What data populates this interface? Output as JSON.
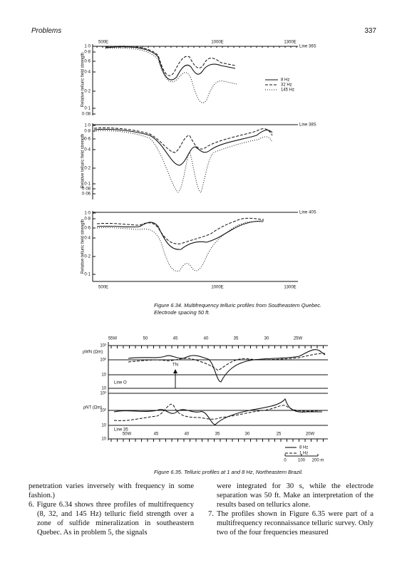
{
  "header": {
    "section": "Problems",
    "page": "337"
  },
  "figure_634": {
    "xticks": [
      "500E",
      "1000E",
      "1300E"
    ],
    "ylabel": "Relative telluric field strength",
    "legend": [
      "8 Hz",
      "32 Hz",
      "145 Hz"
    ],
    "panels": [
      {
        "line": "Line 36S",
        "yticks": [
          "1·0",
          "0·8",
          "0·6",
          "0·4",
          "0·2",
          "0·1",
          "0·08"
        ]
      },
      {
        "line": "Line 38S",
        "yticks": [
          "1·0",
          "0·8",
          "0·6",
          "0·4",
          "0·2",
          "0·1",
          "0·08",
          "0·06"
        ]
      },
      {
        "line": "Line 40S",
        "yticks": [
          "1·0",
          "0·8",
          "0·6",
          "0·4",
          "0·2",
          "0·1"
        ]
      }
    ],
    "caption": "Figure 6.34.  Multifrequency telluric profiles from Southeastern Quebec. Electrode spacing 50 ft."
  },
  "figure_635": {
    "top_xticks": [
      "55W",
      "50",
      "45",
      "40",
      "35",
      "30",
      "25W"
    ],
    "bottom_xticks": [
      "50W",
      "45",
      "40",
      "35",
      "30",
      "25",
      "20W"
    ],
    "upper": {
      "ylabel": "ρWN (Ωm)",
      "yticks": [
        "10³",
        "10²",
        "10",
        "10"
      ],
      "line": "Line O",
      "marker": "TN"
    },
    "lower": {
      "ylabel": "ρNT (Ωm)",
      "yticks": [
        "10³",
        "10²",
        "10",
        "10"
      ],
      "line": "Line 35"
    },
    "legend": [
      "8 Hz",
      "1 Hz"
    ],
    "scale": [
      "0",
      "100",
      "200 m"
    ],
    "caption": "Figure 6.35.  Telluric profiles at 1 and 8 Hz, Northeastern Brazil."
  },
  "body": {
    "left": [
      "penetration varies inversely with frequency in some fashion.)",
      "6. Figure 6.34 shows three profiles of multifrequency (8, 32, and 145 Hz) telluric field strength over a zone of sulfide mineralization in southeastern Quebec. As in problem 5, the signals"
    ],
    "right": [
      "were integrated for 30 s, while the electrode separation was 50 ft. Make an interpretation of the results based on tellurics alone.",
      "7. The profiles shown in Figure 6.35 were part of a multifrequency reconnaissance telluric survey. Only two of the four frequencies measured"
    ]
  }
}
